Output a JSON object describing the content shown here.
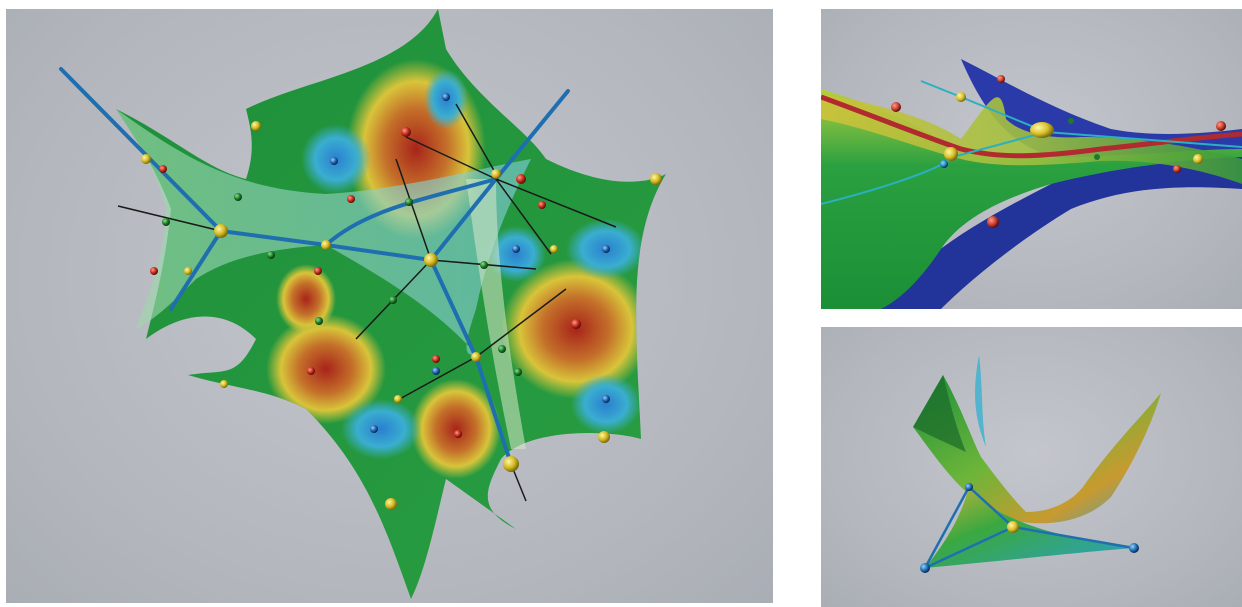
{
  "panels": [
    {
      "view": "main-3d-view"
    },
    {
      "view": "side-view"
    },
    {
      "view": "detail-view"
    }
  ],
  "colors": {
    "background": "#b6babf",
    "surface_green": "#1f9a3a",
    "surface_yellow": "#d6c43a",
    "surface_red": "#b43a1c",
    "surface_blue": "#2a8fd6",
    "edge_blue": "#1f6fb0",
    "dark_blue_sheet": "#22339a",
    "node_yellow": "#d8c12a",
    "node_red": "#c02a1a",
    "node_green": "#1d7a2a",
    "node_blue": "#1f5fa8",
    "axis_line": "#1a1a1a"
  }
}
